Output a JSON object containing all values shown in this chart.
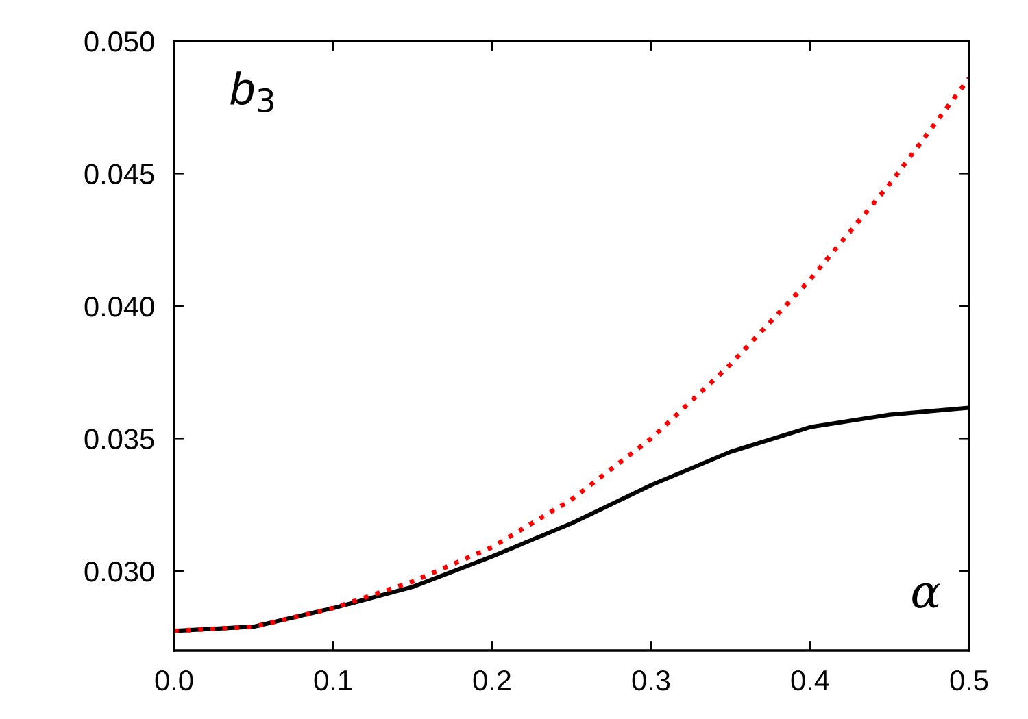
{
  "chart_data": {
    "type": "line",
    "xlabel": "α",
    "ylabel": "b$_{3}$",
    "x": [
      0.0,
      0.05,
      0.1,
      0.15,
      0.2,
      0.25,
      0.3,
      0.35,
      0.4,
      0.45,
      0.5
    ],
    "series": [
      {
        "color": "#000000",
        "line_style": "solid",
        "values": [
          0.02774,
          0.0279,
          0.0286,
          0.0294,
          0.03055,
          0.0318,
          0.03324,
          0.0345,
          0.03543,
          0.0359,
          0.03616
        ]
      },
      {
        "color": "#ff0000",
        "line_style": "dotted",
        "values": [
          0.02774,
          0.0279,
          0.0286,
          0.0296,
          0.0309,
          0.0327,
          0.035,
          0.0378,
          0.041,
          0.0446,
          0.0486
        ]
      }
    ],
    "xlim": [
      0.0,
      0.5
    ],
    "ylim": [
      0.027,
      0.05
    ],
    "xticks": [
      {
        "value": 0.0,
        "label": "0.0"
      },
      {
        "value": 0.1,
        "label": "0.1"
      },
      {
        "value": 0.2,
        "label": "0.2"
      },
      {
        "value": 0.3,
        "label": "0.3"
      },
      {
        "value": 0.4,
        "label": "0.4"
      },
      {
        "value": 0.5,
        "label": "0.5"
      }
    ],
    "yticks": [
      {
        "value": 0.03,
        "label": "0.030"
      },
      {
        "value": 0.035,
        "label": "0.035"
      },
      {
        "value": 0.04,
        "label": "0.040"
      },
      {
        "value": 0.045,
        "label": "0.045"
      },
      {
        "value": 0.05,
        "label": "0.050"
      }
    ],
    "grid": false,
    "legend": false
  }
}
